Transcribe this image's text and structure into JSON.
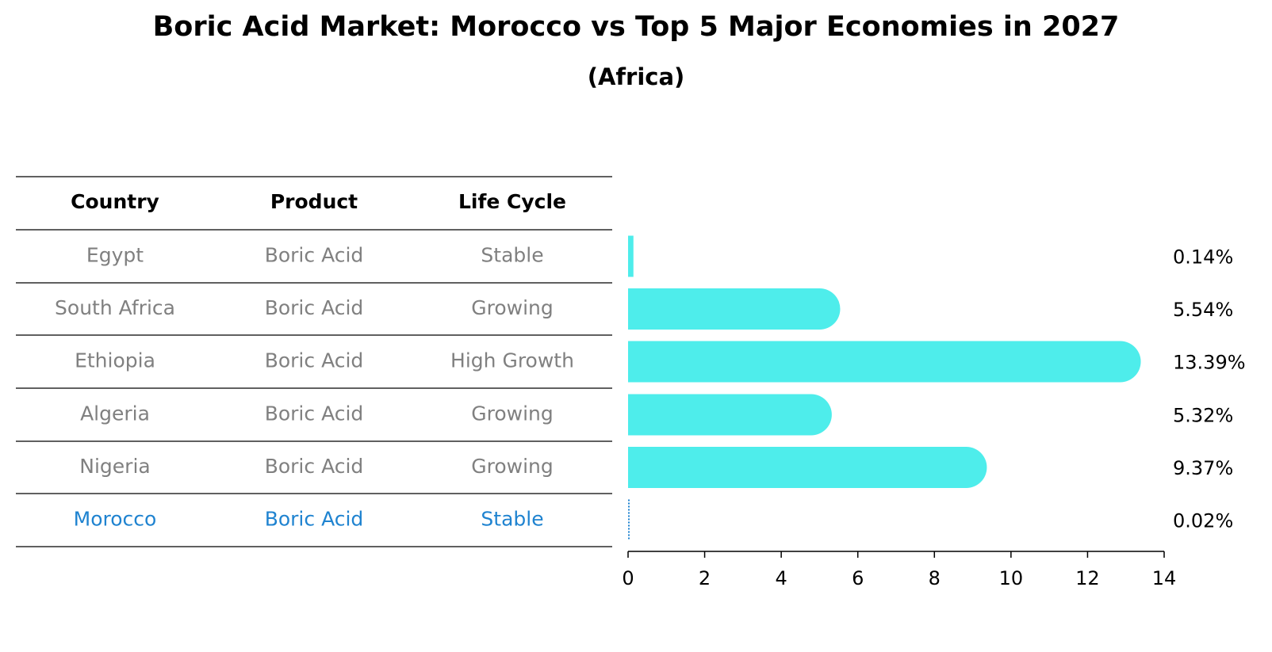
{
  "chart_data": {
    "type": "bar",
    "orientation": "horizontal",
    "title": "Boric Acid Market: Morocco vs Top 5 Major Economies in 2027",
    "subtitle": "(Africa)",
    "table": {
      "headers": [
        "Country",
        "Product",
        "Life Cycle"
      ],
      "rows": [
        {
          "country": "Egypt",
          "product": "Boric Acid",
          "life_cycle": "Stable",
          "highlight": false
        },
        {
          "country": "South Africa",
          "product": "Boric Acid",
          "life_cycle": "Growing",
          "highlight": false
        },
        {
          "country": "Ethiopia",
          "product": "Boric Acid",
          "life_cycle": "High Growth",
          "highlight": false
        },
        {
          "country": "Algeria",
          "product": "Boric Acid",
          "life_cycle": "Growing",
          "highlight": false
        },
        {
          "country": "Nigeria",
          "product": "Boric Acid",
          "life_cycle": "Growing",
          "highlight": false
        },
        {
          "country": "Morocco",
          "product": "Boric Acid",
          "life_cycle": "Stable",
          "highlight": true
        }
      ]
    },
    "categories": [
      "Egypt",
      "South Africa",
      "Ethiopia",
      "Algeria",
      "Nigeria",
      "Morocco"
    ],
    "values": [
      0.14,
      5.54,
      13.39,
      5.32,
      9.37,
      0.02
    ],
    "value_labels": [
      "0.14%",
      "5.54%",
      "13.39%",
      "5.32%",
      "9.37%",
      "0.02%"
    ],
    "xlim": [
      0,
      14
    ],
    "xticks": [
      "0",
      "2",
      "4",
      "6",
      "8",
      "10",
      "12",
      "14"
    ],
    "bar_color": "#4EEDEB",
    "highlight_color": "#1F83D0",
    "text_color": "#808080"
  }
}
